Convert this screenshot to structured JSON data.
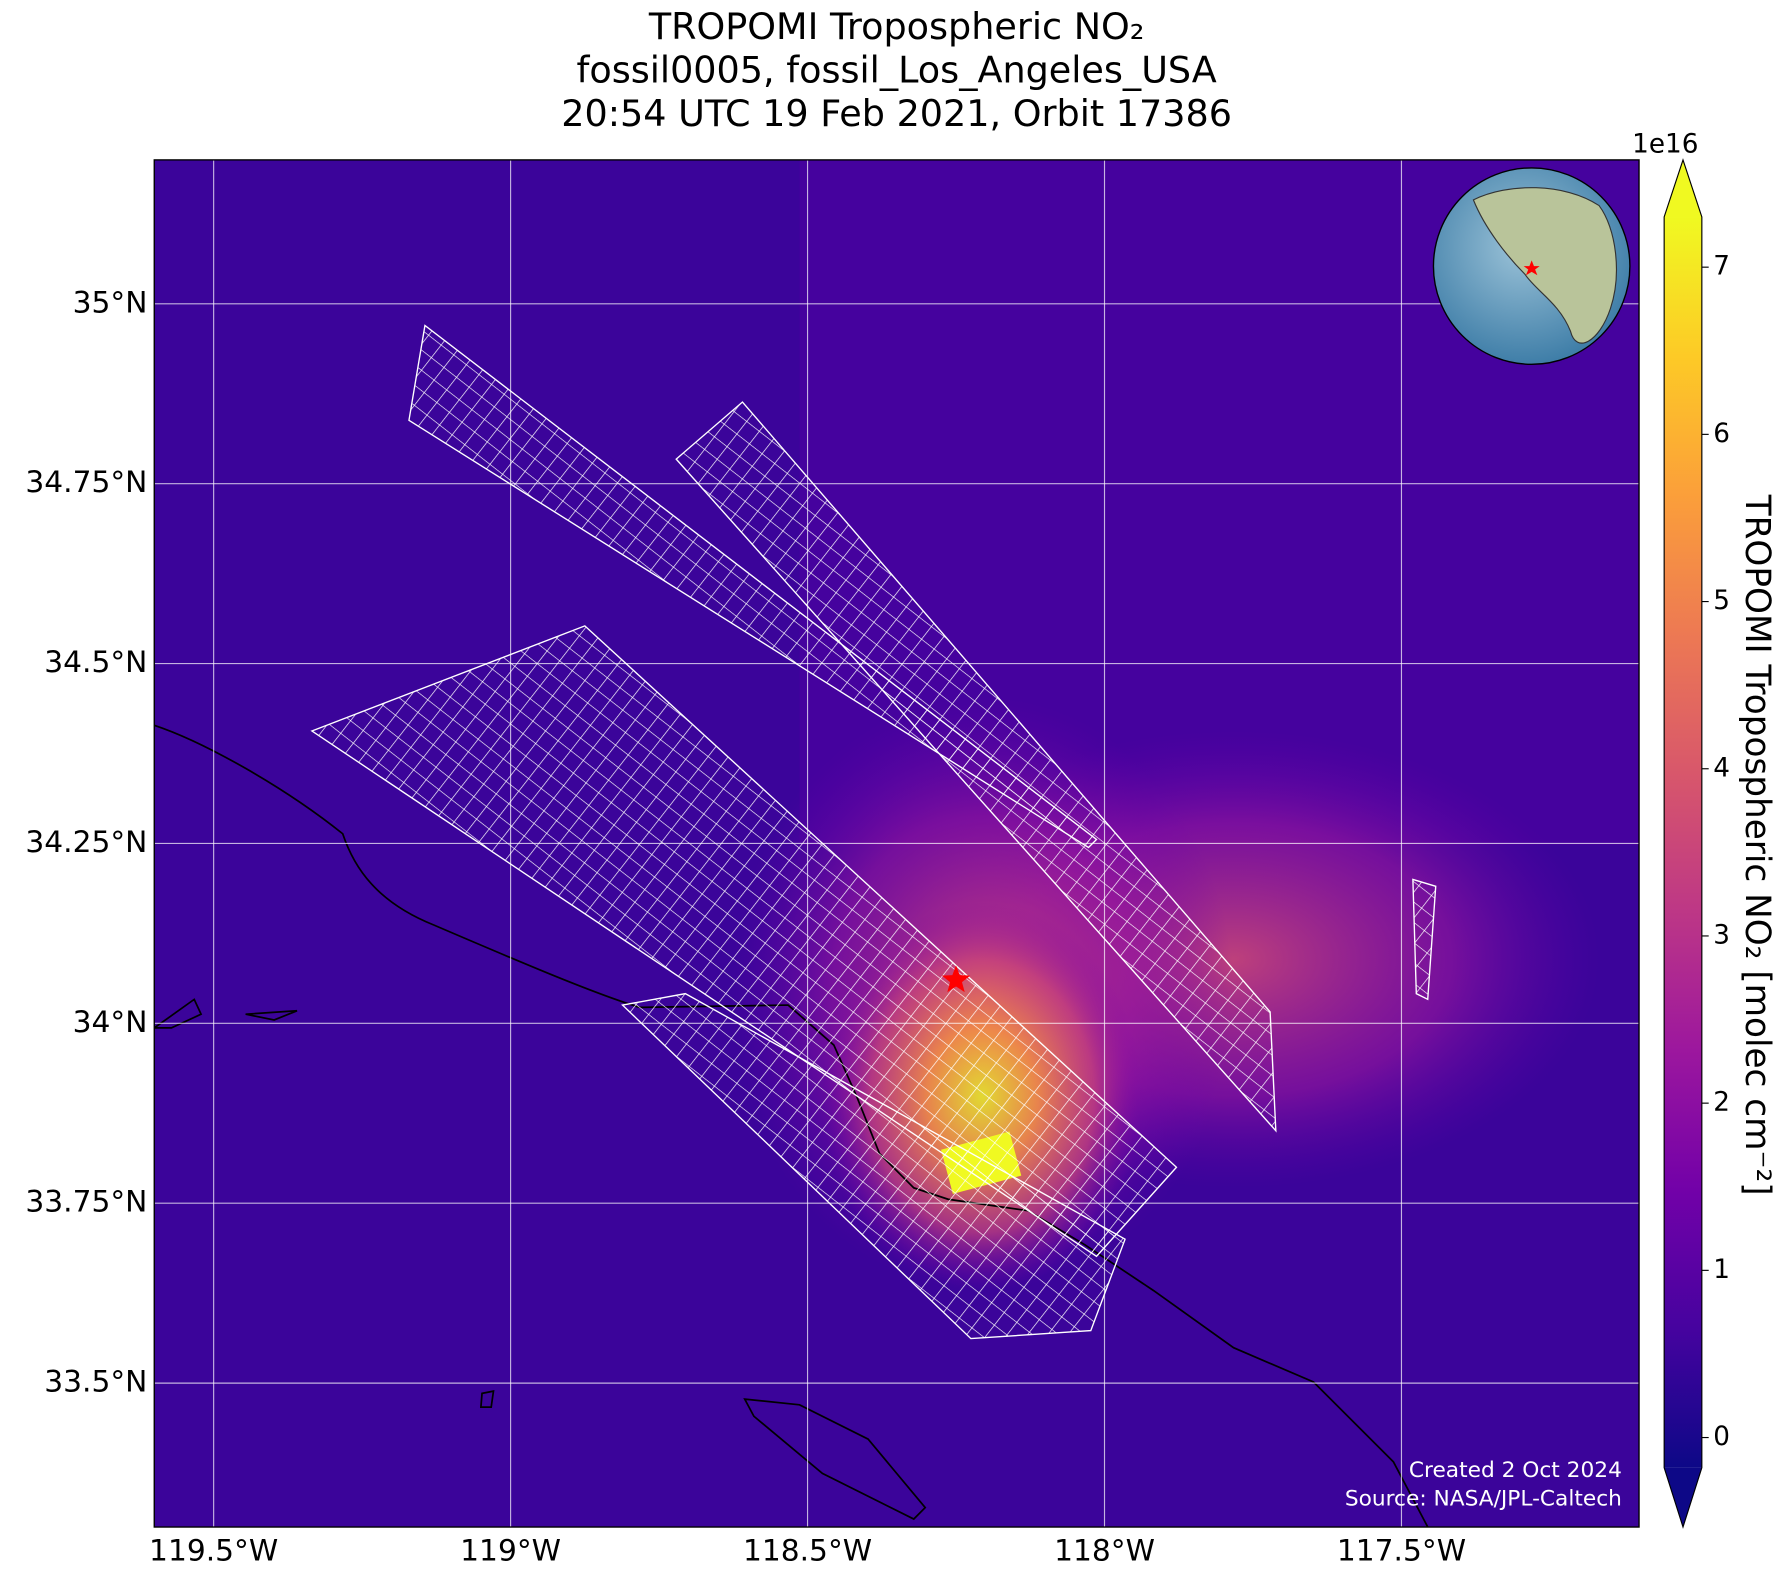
{
  "map": {
    "title": [
      "TROPOMI Tropospheric NO₂",
      "fossil0005, fossil_Los_Angeles_USA",
      "20:54 UTC 19 Feb 2021, Orbit 17386"
    ],
    "xlim": [
      -119.6,
      -117.1
    ],
    "ylim": [
      33.3,
      35.2
    ],
    "xticks": [
      {
        "value": -119.5,
        "label": "119.5°W"
      },
      {
        "value": -119,
        "label": "119°W"
      },
      {
        "value": -118.5,
        "label": "118.5°W"
      },
      {
        "value": -118,
        "label": "118°W"
      },
      {
        "value": -117.5,
        "label": "117.5°W"
      }
    ],
    "yticks": [
      {
        "value": 35,
        "label": "35°N"
      },
      {
        "value": 34.75,
        "label": "34.75°N"
      },
      {
        "value": 34.5,
        "label": "34.5°N"
      },
      {
        "value": 34.25,
        "label": "34.25°N"
      },
      {
        "value": 34,
        "label": "34°N"
      },
      {
        "value": 33.75,
        "label": "33.75°N"
      },
      {
        "value": 33.5,
        "label": "33.5°N"
      }
    ],
    "grid": true,
    "target": {
      "lon": -118.25,
      "lat": 34.06,
      "color": "#ff0000"
    },
    "colorbar": {
      "label": "TROPOMI Tropospheric NO₂ [molec cm⁻²]",
      "multiplier": "1e16",
      "lim": [
        -0.18,
        7.3
      ],
      "ticks": [
        0,
        1,
        2,
        3,
        4,
        5,
        6,
        7
      ],
      "colormap": "plasma"
    },
    "credits": [
      "Created 2 Oct 2024",
      "Source: NASA/JPL-Caltech"
    ]
  }
}
